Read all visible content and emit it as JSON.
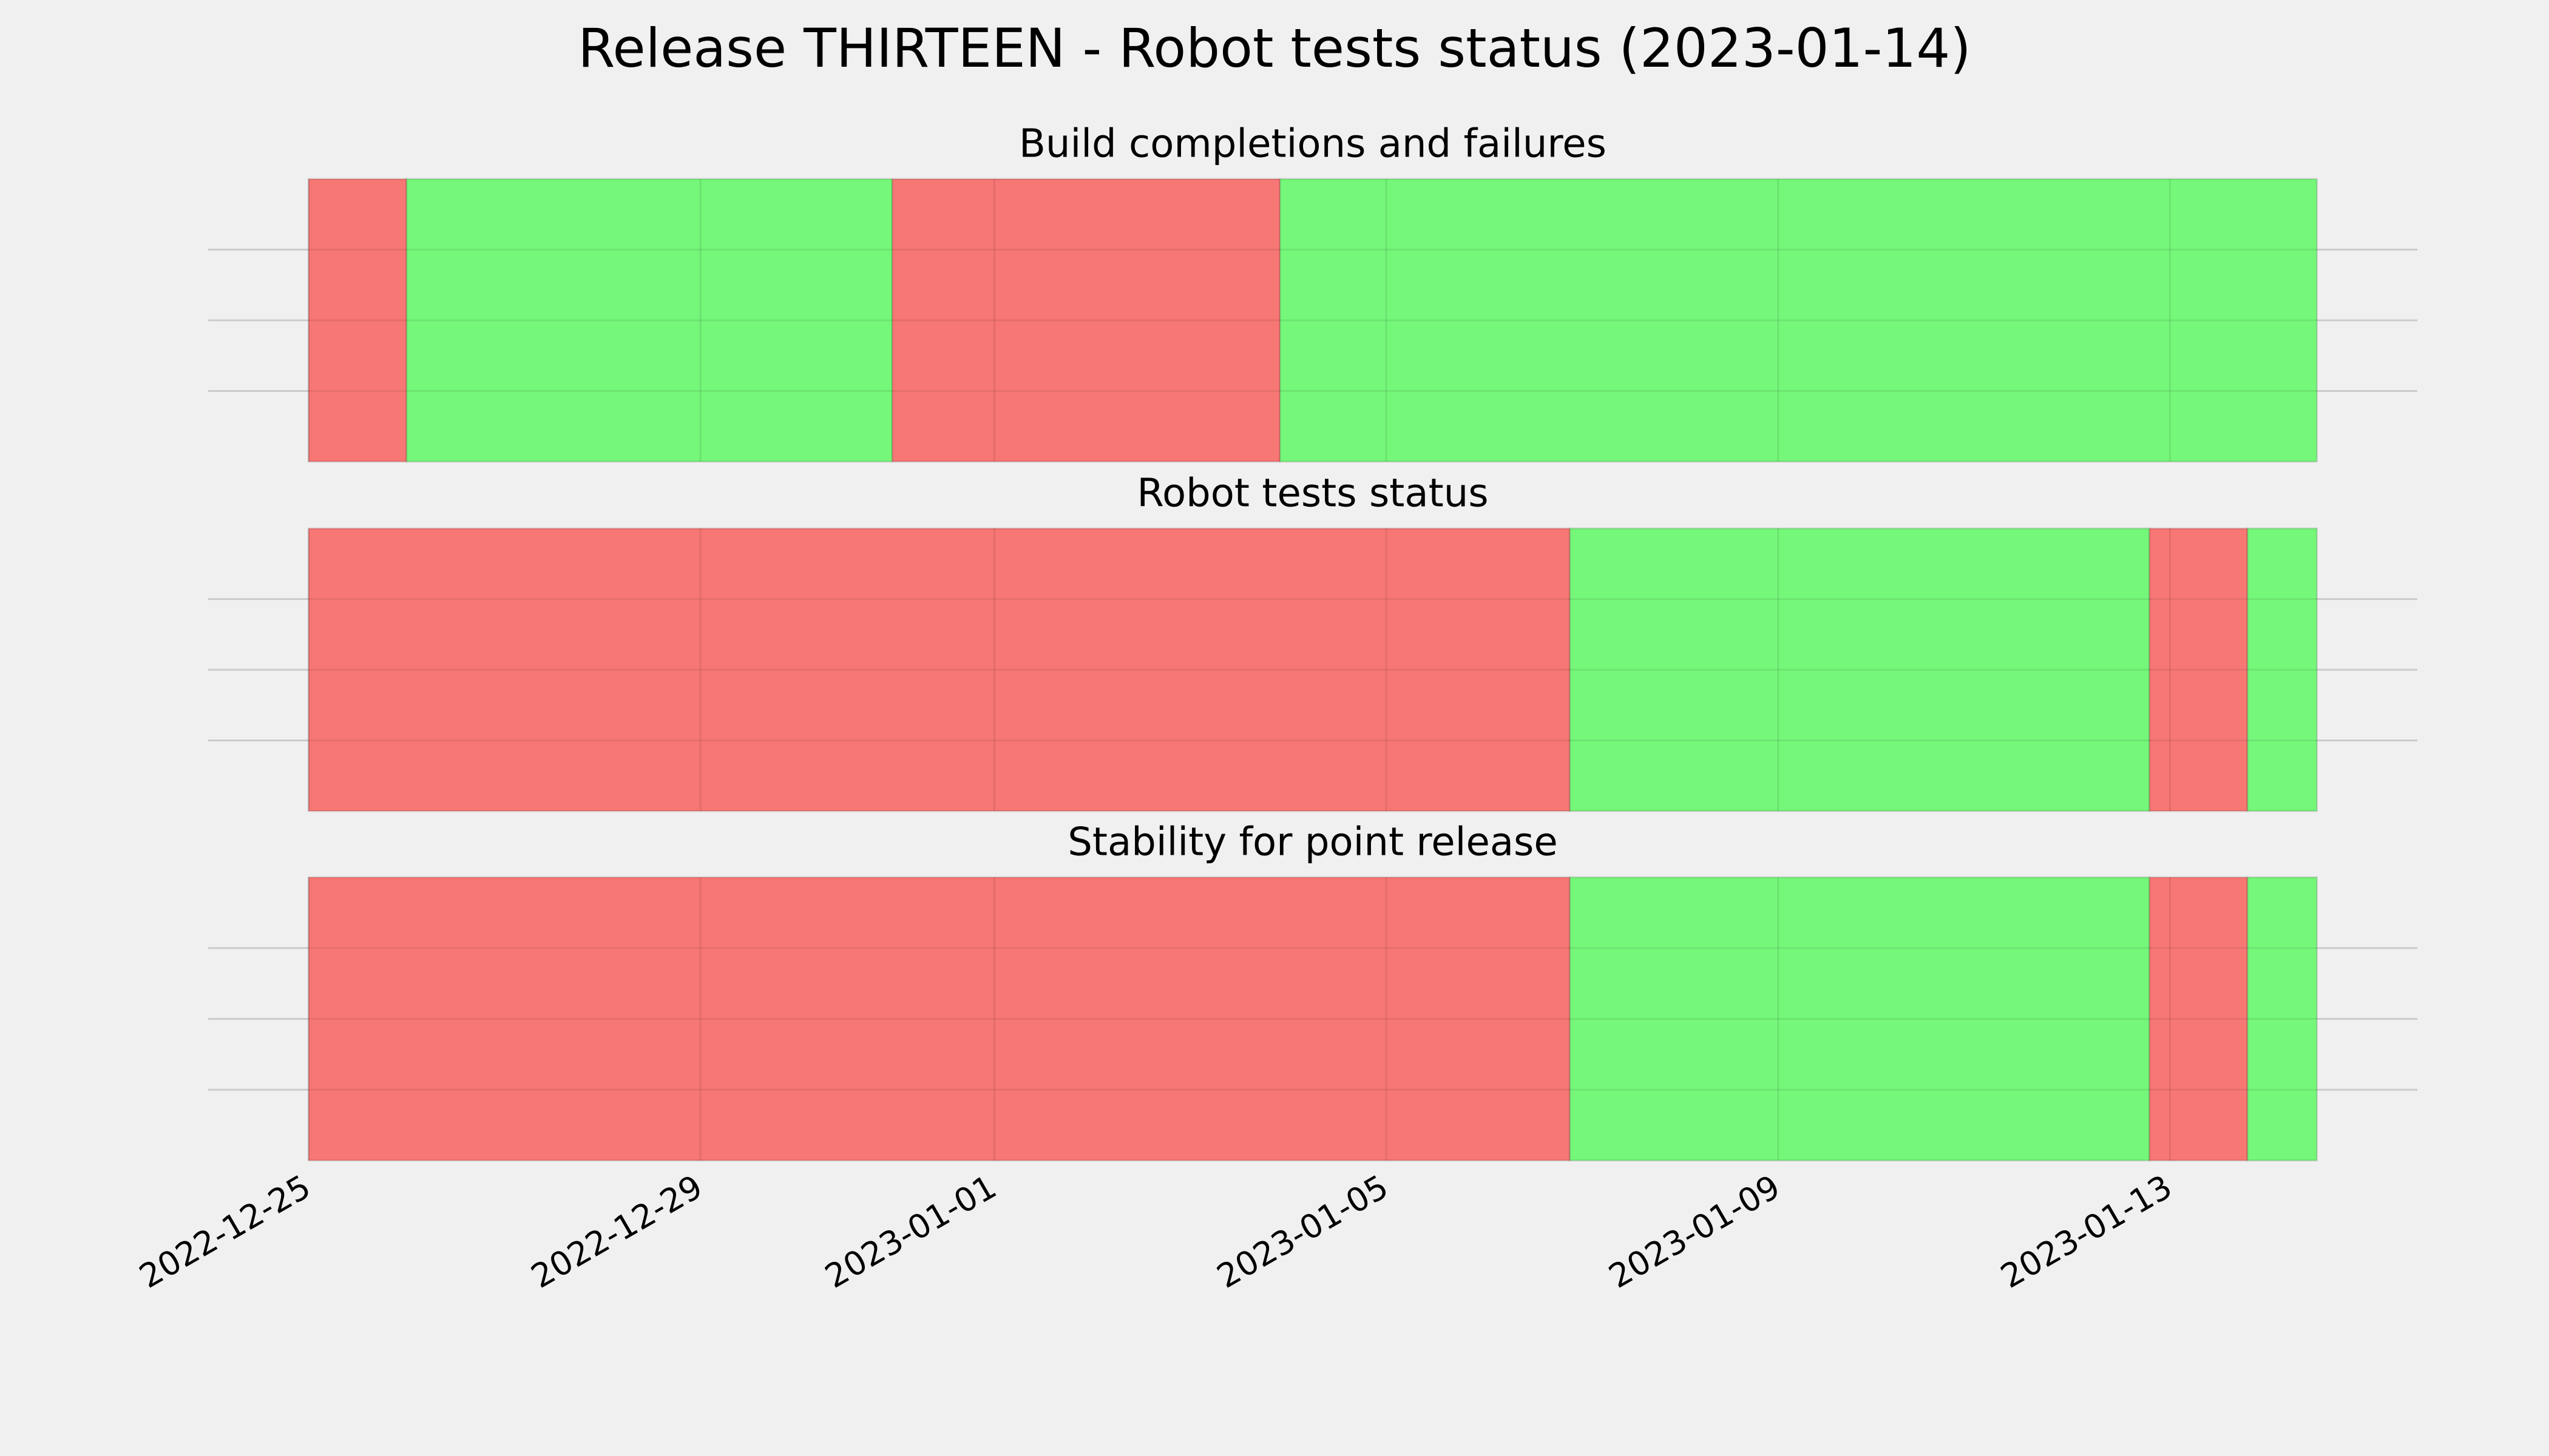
{
  "title": "Release THIRTEEN - Robot tests status (2023-01-14)",
  "chart_data": [
    {
      "type": "timeline",
      "title": "Build completions and failures",
      "spans": [
        {
          "start": "2022-12-25",
          "end": "2022-12-26",
          "color": "#f77774"
        },
        {
          "start": "2022-12-26",
          "end": "2022-12-30T23:00",
          "color": "#75f77a"
        },
        {
          "start": "2022-12-30T23:00",
          "end": "2023-01-03T22:00",
          "color": "#f77774"
        },
        {
          "start": "2023-01-03T22:00",
          "end": "2023-01-14T12:00",
          "color": "#75f77a"
        }
      ],
      "ylim": [
        0,
        1
      ],
      "yticks": [
        0.25,
        0.5,
        0.75
      ],
      "grid": true
    },
    {
      "type": "timeline",
      "title": "Robot tests status",
      "spans": [
        {
          "start": "2022-12-25",
          "end": "2023-01-06T21:00",
          "color": "#f77774"
        },
        {
          "start": "2023-01-06T21:00",
          "end": "2023-01-12T19:00",
          "color": "#75f77a"
        },
        {
          "start": "2023-01-12T19:00",
          "end": "2023-01-13T19:00",
          "color": "#f77774"
        },
        {
          "start": "2023-01-13T19:00",
          "end": "2023-01-14T12:00",
          "color": "#75f77a"
        }
      ],
      "ylim": [
        0,
        1
      ],
      "yticks": [
        0.25,
        0.5,
        0.75
      ],
      "grid": true
    },
    {
      "type": "timeline",
      "title": "Stability for point release",
      "spans": [
        {
          "start": "2022-12-25",
          "end": "2023-01-06T21:00",
          "color": "#f77774"
        },
        {
          "start": "2023-01-06T21:00",
          "end": "2023-01-12T19:00",
          "color": "#75f77a"
        },
        {
          "start": "2023-01-12T19:00",
          "end": "2023-01-13T19:00",
          "color": "#f77774"
        },
        {
          "start": "2023-01-13T19:00",
          "end": "2023-01-14T12:00",
          "color": "#75f77a"
        }
      ],
      "ylim": [
        0,
        1
      ],
      "yticks": [
        0.25,
        0.5,
        0.75
      ],
      "grid": true,
      "xlim": [
        "2022-12-23T23:24",
        "2023-01-15T12:36"
      ],
      "xticks": [
        "2022-12-25",
        "2022-12-29",
        "2023-01-01",
        "2023-01-05",
        "2023-01-09",
        "2023-01-13"
      ]
    }
  ]
}
